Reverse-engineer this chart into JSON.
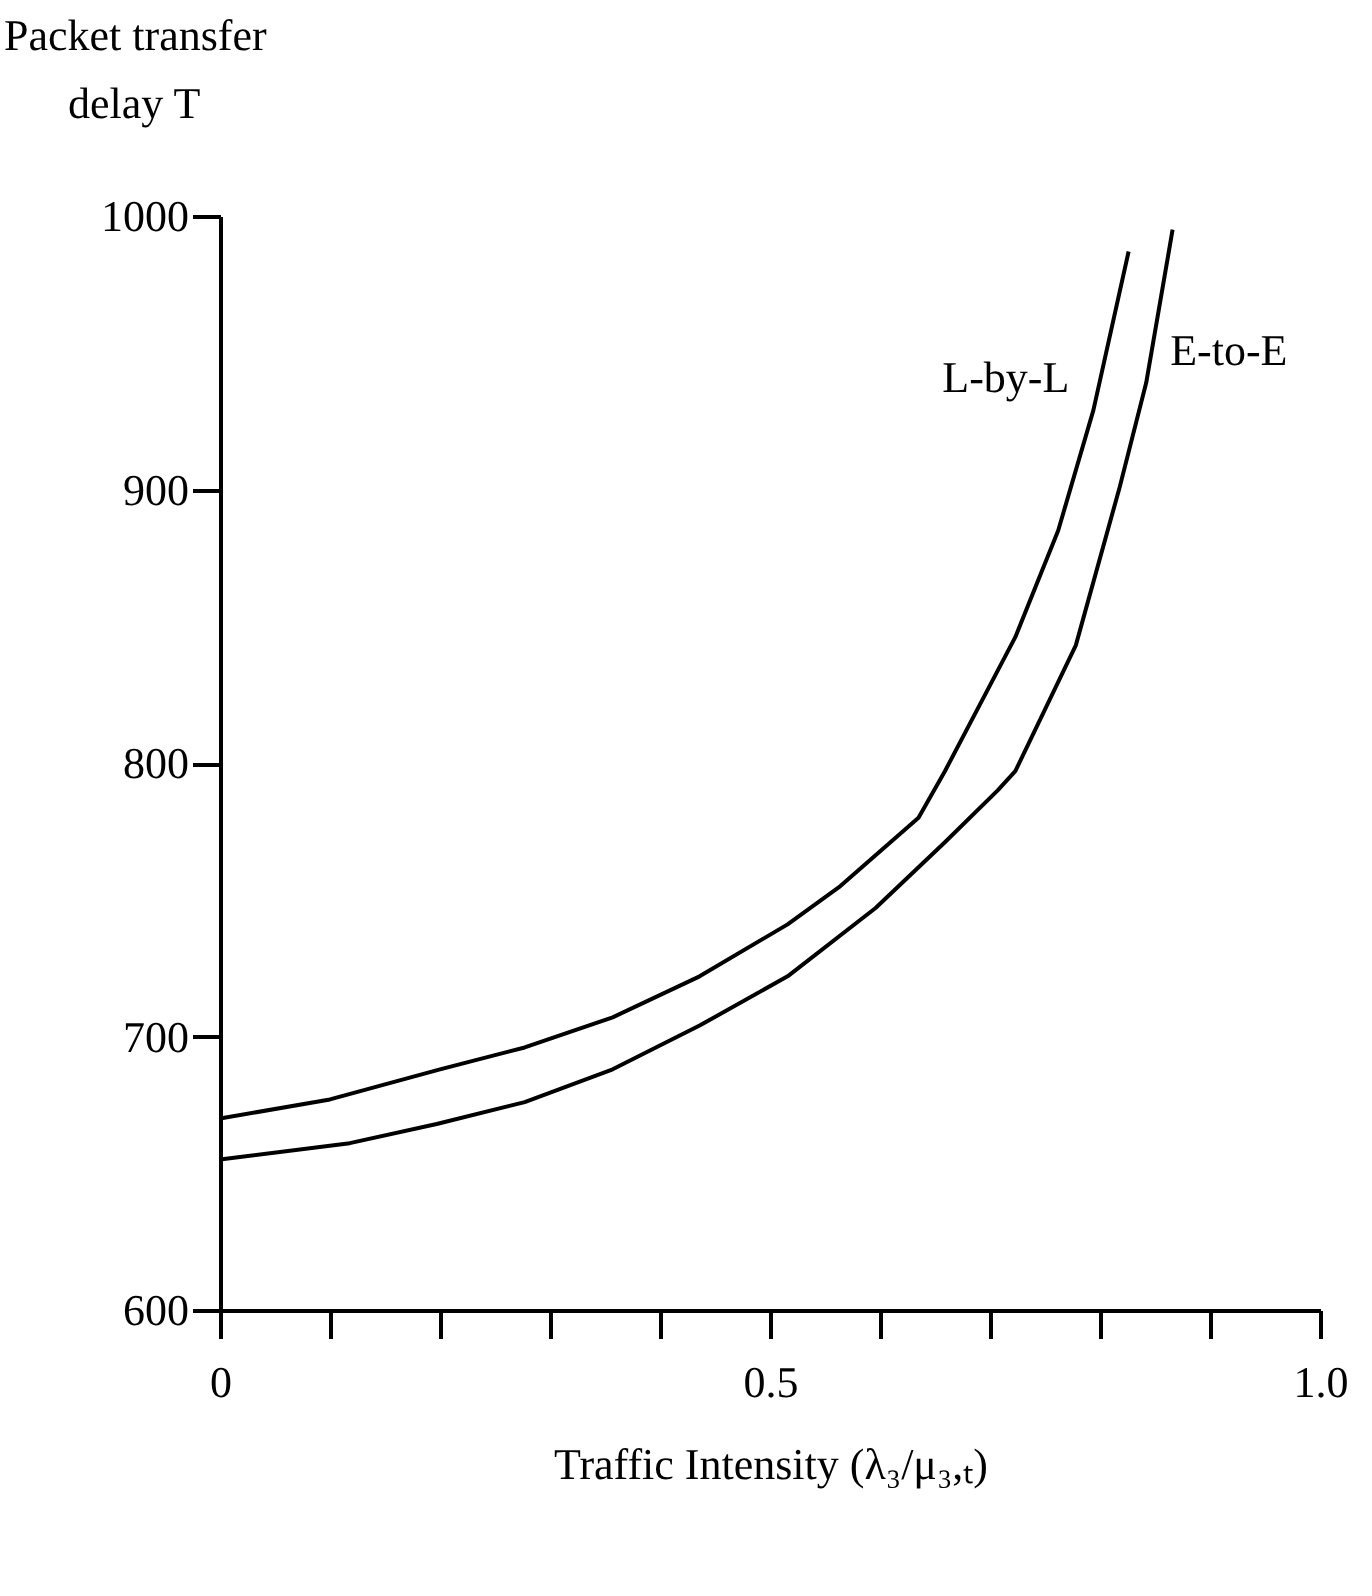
{
  "chart_data": {
    "type": "line",
    "xlabel": "Traffic Intensity (λ₃/μ₃,ₜ)",
    "ylabel": "Packet transfer\ndelay T",
    "series": [
      {
        "name": "L-by-L",
        "color": "#000000",
        "x": [
          0,
          0.1,
          0.2,
          0.277,
          0.357,
          0.436,
          0.516,
          0.564,
          0.635,
          0.659,
          0.723,
          0.762,
          0.794,
          0.826
        ],
        "values": [
          670,
          677,
          688,
          696,
          707,
          722,
          741,
          755,
          780,
          797,
          846,
          885,
          929,
          987
        ]
      },
      {
        "name": "E-to-E",
        "color": "#000000",
        "x": [
          0,
          0.118,
          0.197,
          0.277,
          0.357,
          0.436,
          0.516,
          0.596,
          0.659,
          0.707,
          0.723,
          0.778,
          0.818,
          0.842,
          0.866
        ],
        "values": [
          655,
          661,
          668,
          676,
          688,
          704,
          722,
          747,
          771,
          790,
          797,
          843,
          901,
          939,
          995
        ]
      }
    ],
    "xlim": [
      0,
      1
    ],
    "ylim": [
      600,
      1000
    ],
    "xticks": [
      0,
      {
        "value": 0.1,
        "label": null
      },
      {
        "value": 0.2,
        "label": null
      },
      {
        "value": 0.3,
        "label": null
      },
      {
        "value": 0.4,
        "label": null
      },
      0.5,
      {
        "value": 0.6,
        "label": null
      },
      {
        "value": 0.7,
        "label": null
      },
      {
        "value": 0.8,
        "label": null
      },
      {
        "value": 0.9,
        "label": null
      },
      {
        "value": 1,
        "label": "1.0"
      }
    ],
    "yticks": [
      600,
      700,
      800,
      900,
      1000
    ],
    "grid": false,
    "legend": false,
    "line_style": "solid",
    "marker": "none"
  }
}
